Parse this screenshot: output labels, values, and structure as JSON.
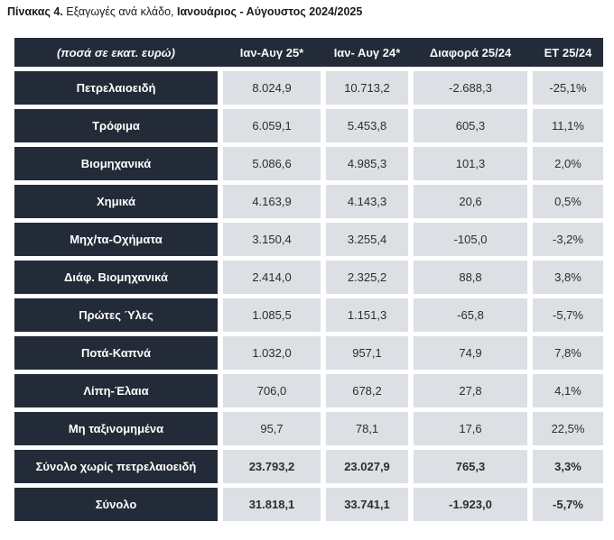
{
  "title": {
    "part1_bold": "Πίνακας 4.",
    "part2": " Εξαγωγές ανά κλάδο, ",
    "part3_bold": "Ιανουάριος - Αύγουστος 2024/2025"
  },
  "table": {
    "colors": {
      "header_bg": "#232b38",
      "label_cell_bg": "#232b38",
      "data_cell_bg": "#dcdfe3",
      "header_text": "#f5f6f7",
      "data_text": "#2d2d2d"
    },
    "columns": [
      "(ποσά σε εκατ. ευρώ)",
      "Ιαν-Αυγ 25*",
      "Ιαν- Αυγ 24*",
      "Διαφορά 25/24",
      "ΕΤ 25/24"
    ],
    "rows": [
      {
        "label": "Πετρελαιοειδή",
        "jan_aug_25": "8.024,9",
        "jan_aug_24": "10.713,2",
        "diff": "-2.688,3",
        "pct": "-25,1%",
        "emphasis": false
      },
      {
        "label": "Τρόφιμα",
        "jan_aug_25": "6.059,1",
        "jan_aug_24": "5.453,8",
        "diff": "605,3",
        "pct": "11,1%",
        "emphasis": false
      },
      {
        "label": "Βιομηχανικά",
        "jan_aug_25": "5.086,6",
        "jan_aug_24": "4.985,3",
        "diff": "101,3",
        "pct": "2,0%",
        "emphasis": false
      },
      {
        "label": "Χημικά",
        "jan_aug_25": "4.163,9",
        "jan_aug_24": "4.143,3",
        "diff": "20,6",
        "pct": "0,5%",
        "emphasis": false
      },
      {
        "label": "Μηχ/τα-Οχήματα",
        "jan_aug_25": "3.150,4",
        "jan_aug_24": "3.255,4",
        "diff": "-105,0",
        "pct": "-3,2%",
        "emphasis": false
      },
      {
        "label": "Διάφ. Βιομηχανικά",
        "jan_aug_25": "2.414,0",
        "jan_aug_24": "2.325,2",
        "diff": "88,8",
        "pct": "3,8%",
        "emphasis": false
      },
      {
        "label": "Πρώτες Ύλες",
        "jan_aug_25": "1.085,5",
        "jan_aug_24": "1.151,3",
        "diff": "-65,8",
        "pct": "-5,7%",
        "emphasis": false
      },
      {
        "label": "Ποτά-Καπνά",
        "jan_aug_25": "1.032,0",
        "jan_aug_24": "957,1",
        "diff": "74,9",
        "pct": "7,8%",
        "emphasis": false
      },
      {
        "label": "Λίπη-Έλαια",
        "jan_aug_25": "706,0",
        "jan_aug_24": "678,2",
        "diff": "27,8",
        "pct": "4,1%",
        "emphasis": false
      },
      {
        "label": "Μη ταξινομημένα",
        "jan_aug_25": "95,7",
        "jan_aug_24": "78,1",
        "diff": "17,6",
        "pct": "22,5%",
        "emphasis": false
      },
      {
        "label": "Σύνολο χωρίς πετρελαιοειδή",
        "jan_aug_25": "23.793,2",
        "jan_aug_24": "23.027,9",
        "diff": "765,3",
        "pct": "3,3%",
        "emphasis": true
      },
      {
        "label": "Σύνολο",
        "jan_aug_25": "31.818,1",
        "jan_aug_24": "33.741,1",
        "diff": "-1.923,0",
        "pct": "-5,7%",
        "emphasis": true
      }
    ]
  }
}
